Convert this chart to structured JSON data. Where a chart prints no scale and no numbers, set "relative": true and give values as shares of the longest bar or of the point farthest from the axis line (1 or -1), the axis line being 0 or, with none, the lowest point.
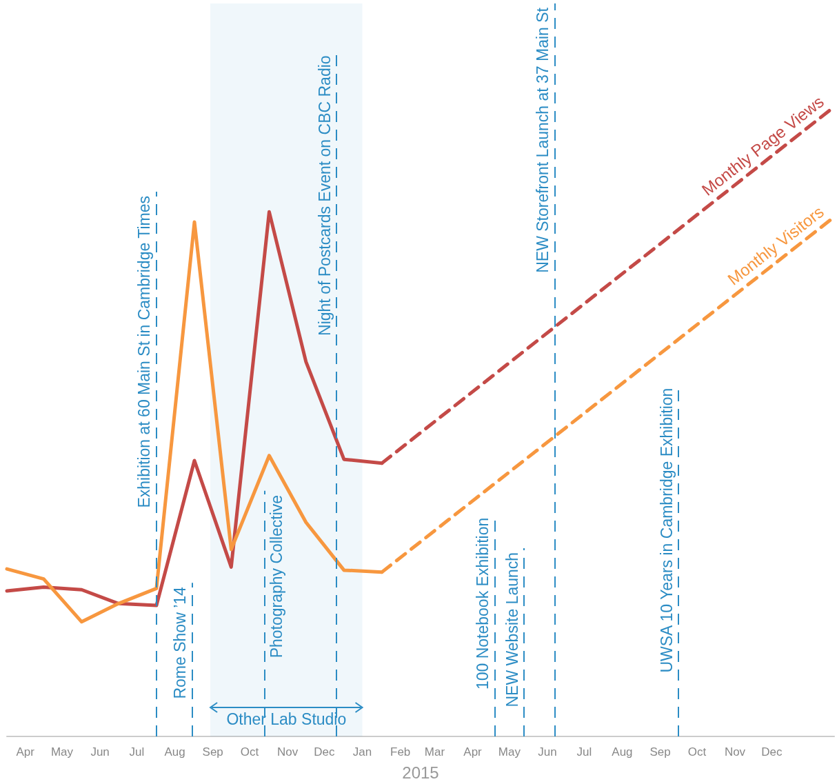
{
  "chart_data": {
    "type": "line",
    "relative": true,
    "marker": "none",
    "grid": false,
    "legend": false,
    "xlabel": "2015",
    "xlim": [
      "2014-04-01",
      "2016-02-05"
    ],
    "xticks": [
      {
        "value": "2014-04-16",
        "label": "Apr"
      },
      {
        "value": "2014-05-16",
        "label": "May"
      },
      {
        "value": "2014-06-16",
        "label": "Jun"
      },
      {
        "value": "2014-07-16",
        "label": "Jul"
      },
      {
        "value": "2014-08-16",
        "label": "Aug"
      },
      {
        "value": "2014-09-16",
        "label": "Sep"
      },
      {
        "value": "2014-10-16",
        "label": "Oct"
      },
      {
        "value": "2014-11-16",
        "label": "Nov"
      },
      {
        "value": "2014-12-16",
        "label": "Dec"
      },
      {
        "value": "2015-01-16",
        "label": "Jan"
      },
      {
        "value": "2015-02-16",
        "label": "Feb"
      },
      {
        "value": "2015-03-16",
        "label": "Mar"
      },
      {
        "value": "2015-04-16",
        "label": "Apr"
      },
      {
        "value": "2015-05-16",
        "label": "May"
      },
      {
        "value": "2015-06-16",
        "label": "Jun"
      },
      {
        "value": "2015-07-16",
        "label": "Jul"
      },
      {
        "value": "2015-08-16",
        "label": "Aug"
      },
      {
        "value": "2015-09-16",
        "label": "Sep"
      },
      {
        "value": "2015-10-16",
        "label": "Oct"
      },
      {
        "value": "2015-11-16",
        "label": "Nov"
      },
      {
        "value": "2015-12-16",
        "label": "Dec"
      }
    ],
    "series": [
      {
        "color": "#c44a47",
        "line_style": "solid",
        "x": [
          "2014-04-01",
          "2014-05-01",
          "2014-06-01",
          "2014-07-01",
          "2014-08-01",
          "2014-09-01",
          "2014-10-01",
          "2014-11-01",
          "2014-12-01",
          "2015-01-01",
          "2015-02-01"
        ],
        "values": [
          0.231,
          0.237,
          0.233,
          0.211,
          0.208,
          0.438,
          0.269,
          0.833,
          0.595,
          0.44,
          0.434
        ]
      },
      {
        "color": "#f7973f",
        "line_style": "solid",
        "x": [
          "2014-04-01",
          "2014-05-01",
          "2014-06-01",
          "2014-07-01",
          "2014-08-01",
          "2014-09-01",
          "2014-10-01",
          "2014-11-01",
          "2014-12-01",
          "2015-01-01",
          "2015-02-01"
        ],
        "values": [
          0.266,
          0.25,
          0.182,
          0.211,
          0.235,
          0.817,
          0.297,
          0.446,
          0.34,
          0.264,
          0.261
        ]
      },
      {
        "name": "Monthly Page Views",
        "color": "#c44a47",
        "line_style": "dashed",
        "x": [
          "2015-02-01",
          "2016-02-05"
        ],
        "values": [
          0.434,
          1
        ]
      },
      {
        "name": "Monthly Visitors",
        "color": "#f7973f",
        "line_style": "dashed",
        "x": [
          "2015-02-01",
          "2016-02-05"
        ],
        "values": [
          0.261,
          0.825
        ]
      }
    ],
    "ref_lines": [
      {
        "axis": "x",
        "value": "2014-08-01",
        "label": "Exhibition at 60 Main St in Cambridge Times",
        "color": "#2b8cc4",
        "line_style": "dashed"
      },
      {
        "axis": "x",
        "value": "2014-08-30",
        "label": "Rome Show ’14",
        "color": "#2b8cc4",
        "line_style": "dashed"
      },
      {
        "axis": "x",
        "value": "2014-10-28",
        "label": "Photography Collective",
        "color": "#2b8cc4",
        "line_style": "dashed"
      },
      {
        "axis": "x",
        "value": "2014-12-26",
        "label": "Night of Postcards Event on CBC Radio",
        "color": "#2b8cc4",
        "line_style": "dashed"
      },
      {
        "axis": "x",
        "value": "2015-05-04",
        "label": "100 Notebook Exhibition",
        "color": "#2b8cc4",
        "line_style": "dashed"
      },
      {
        "axis": "x",
        "value": "2015-05-28",
        "label": "NEW Website Launch",
        "color": "#2b8cc4",
        "line_style": "dashed"
      },
      {
        "axis": "x",
        "value": "2015-06-22",
        "label": "NEW Storefront Launch at 37 Main St",
        "color": "#2b8cc4",
        "line_style": "dashed"
      },
      {
        "axis": "x",
        "value": "2015-10-01",
        "label": "UWSA 10 Years in Cambridge Exhibition",
        "color": "#2b8cc4",
        "line_style": "dashed"
      }
    ],
    "bands": [
      {
        "axis": "x",
        "from": "2014-09-14",
        "to": "2015-01-16",
        "label": "Other Lab Studio",
        "color": "#2b8cc4"
      }
    ]
  }
}
